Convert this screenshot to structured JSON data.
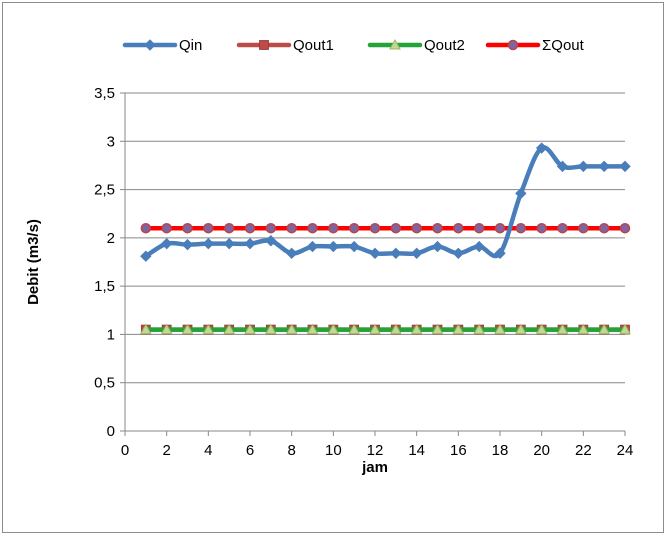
{
  "chart_data": {
    "type": "line",
    "xlabel": "jam",
    "ylabel": "Debit (m3/s)",
    "xlim": [
      0,
      24
    ],
    "ylim": [
      0,
      3.5
    ],
    "x_ticks": [
      "0",
      "2",
      "4",
      "6",
      "8",
      "10",
      "12",
      "14",
      "16",
      "18",
      "20",
      "22",
      "24"
    ],
    "y_ticks": [
      "0",
      "0,5",
      "1",
      "1,5",
      "2",
      "2,5",
      "3",
      "3,5"
    ],
    "grid": "horizontal",
    "legend_position": "top",
    "x": [
      1,
      2,
      3,
      4,
      5,
      6,
      7,
      8,
      9,
      10,
      11,
      12,
      13,
      14,
      15,
      16,
      17,
      18,
      19,
      20,
      21,
      22,
      23,
      24
    ],
    "series": [
      {
        "name": "Qin",
        "color": "#4a7ebb",
        "marker": "diamond",
        "values": [
          1.81,
          1.94,
          1.93,
          1.94,
          1.94,
          1.94,
          1.97,
          1.84,
          1.91,
          1.91,
          1.91,
          1.84,
          1.84,
          1.84,
          1.91,
          1.84,
          1.91,
          1.84,
          2.46,
          2.93,
          2.74,
          2.74,
          2.74,
          2.74
        ]
      },
      {
        "name": "Qout1",
        "color": "#be4b48",
        "marker": "square",
        "values": [
          1.05,
          1.05,
          1.05,
          1.05,
          1.05,
          1.05,
          1.05,
          1.05,
          1.05,
          1.05,
          1.05,
          1.05,
          1.05,
          1.05,
          1.05,
          1.05,
          1.05,
          1.05,
          1.05,
          1.05,
          1.05,
          1.05,
          1.05,
          1.05
        ]
      },
      {
        "name": "Qout2",
        "color": "#23a438",
        "marker": "triangle",
        "values": [
          1.05,
          1.05,
          1.05,
          1.05,
          1.05,
          1.05,
          1.05,
          1.05,
          1.05,
          1.05,
          1.05,
          1.05,
          1.05,
          1.05,
          1.05,
          1.05,
          1.05,
          1.05,
          1.05,
          1.05,
          1.05,
          1.05,
          1.05,
          1.05
        ]
      },
      {
        "name": "ΣQout",
        "color": "#ff0000",
        "marker": "circle",
        "values": [
          2.1,
          2.1,
          2.1,
          2.1,
          2.1,
          2.1,
          2.1,
          2.1,
          2.1,
          2.1,
          2.1,
          2.1,
          2.1,
          2.1,
          2.1,
          2.1,
          2.1,
          2.1,
          2.1,
          2.1,
          2.1,
          2.1,
          2.1,
          2.1
        ]
      }
    ]
  }
}
